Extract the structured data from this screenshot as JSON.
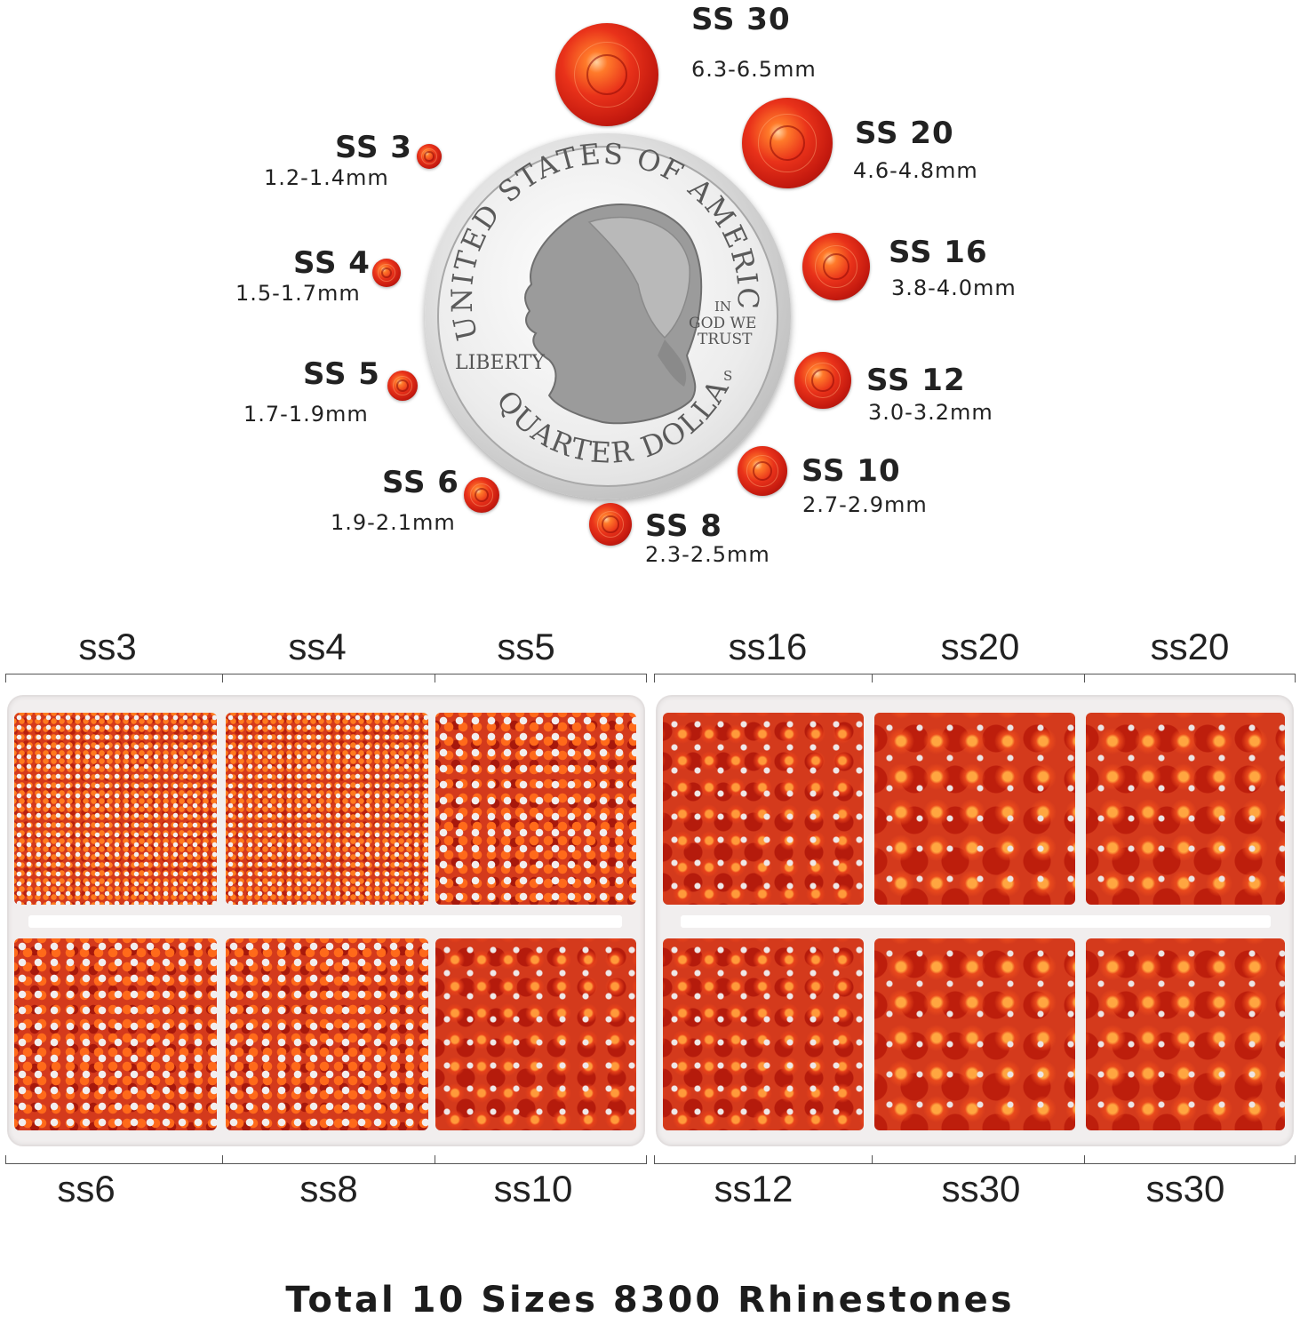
{
  "size_chart": {
    "sizes": [
      {
        "label": "SS 30",
        "range": "6.3-6.5mm"
      },
      {
        "label": "SS 20",
        "range": "4.6-4.8mm"
      },
      {
        "label": "SS 16",
        "range": "3.8-4.0mm"
      },
      {
        "label": "SS 12",
        "range": "3.0-3.2mm"
      },
      {
        "label": "SS 10",
        "range": "2.7-2.9mm"
      },
      {
        "label": "SS 8",
        "range": "2.3-2.5mm"
      },
      {
        "label": "SS 6",
        "range": "1.9-2.1mm"
      },
      {
        "label": "SS 5",
        "range": "1.7-1.9mm"
      },
      {
        "label": "SS 4",
        "range": "1.5-1.7mm"
      },
      {
        "label": "SS 3",
        "range": "1.2-1.4mm"
      }
    ],
    "stone_color": "#d62a14",
    "coin": {
      "top_text": "UNITED STATES OF AMERICA",
      "bottom_text": "QUARTER DOLLAR",
      "liberty": "LIBERTY",
      "motto": [
        "IN",
        "GOD WE",
        "TRUST"
      ],
      "mint_mark": "S"
    }
  },
  "left_box": {
    "top_labels": [
      "ss3",
      "ss4",
      "ss5"
    ],
    "bottom_labels": [
      "ss6",
      "ss8",
      "ss10"
    ]
  },
  "right_box": {
    "top_labels": [
      "ss16",
      "ss20",
      "ss20"
    ],
    "bottom_labels": [
      "ss12",
      "ss30",
      "ss30"
    ]
  },
  "caption": "Total 10 Sizes 8300 Rhinestones"
}
